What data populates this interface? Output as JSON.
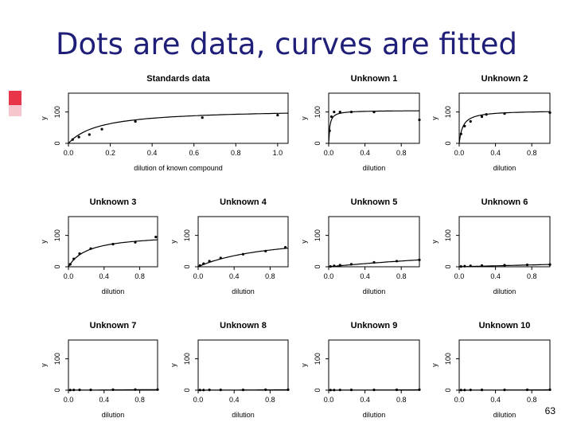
{
  "slide": {
    "title": "Dots are data, curves are fitted",
    "page_number": "63",
    "accent_color": "#e8354a",
    "title_color": "#1f1f7a"
  },
  "chart_data": [
    {
      "type": "scatter",
      "title": "Standards data",
      "xlabel": "dilution of known compound",
      "ylabel": "y",
      "xlim": [
        0,
        1.05
      ],
      "ylim": [
        0,
        160
      ],
      "xticks": [
        "0.0",
        "0.2",
        "0.4",
        "0.6",
        "0.8",
        "1.0"
      ],
      "yticks": [
        "0",
        "100"
      ],
      "points": [
        [
          0.02,
          12
        ],
        [
          0.05,
          20
        ],
        [
          0.1,
          28
        ],
        [
          0.16,
          45
        ],
        [
          0.32,
          70
        ],
        [
          0.64,
          82
        ],
        [
          1.0,
          90
        ]
      ],
      "fit": {
        "vmax": 110,
        "k": 0.15
      }
    },
    {
      "type": "scatter",
      "title": "Unknown 1",
      "xlabel": "dilution",
      "ylabel": "y",
      "xlim": [
        0,
        1
      ],
      "ylim": [
        0,
        160
      ],
      "xticks": [
        "0.0",
        "0.4",
        "0.8"
      ],
      "yticks": [
        "0",
        "100"
      ],
      "points": [
        [
          0.01,
          40
        ],
        [
          0.03,
          85
        ],
        [
          0.06,
          100
        ],
        [
          0.125,
          100
        ],
        [
          0.25,
          100
        ],
        [
          0.5,
          100
        ],
        [
          1.0,
          75
        ]
      ],
      "fit": {
        "vmax": 105,
        "k": 0.012
      }
    },
    {
      "type": "scatter",
      "title": "Unknown 2",
      "xlabel": "dilution",
      "ylabel": "y",
      "xlim": [
        0,
        1
      ],
      "ylim": [
        0,
        160
      ],
      "xticks": [
        "0.0",
        "0.4",
        "0.8"
      ],
      "yticks": [
        "0",
        "100"
      ],
      "points": [
        [
          0.02,
          30
        ],
        [
          0.06,
          55
        ],
        [
          0.125,
          70
        ],
        [
          0.25,
          85
        ],
        [
          0.3,
          92
        ],
        [
          0.5,
          95
        ],
        [
          1.0,
          98
        ]
      ],
      "fit": {
        "vmax": 105,
        "k": 0.04
      }
    },
    {
      "type": "scatter",
      "title": "Unknown 3",
      "xlabel": "dilution",
      "ylabel": "y",
      "xlim": [
        0,
        1
      ],
      "ylim": [
        0,
        160
      ],
      "xticks": [
        "0.0",
        "0.4",
        "0.8"
      ],
      "yticks": [
        "0",
        "100"
      ],
      "points": [
        [
          0.02,
          8
        ],
        [
          0.06,
          25
        ],
        [
          0.125,
          42
        ],
        [
          0.25,
          58
        ],
        [
          0.5,
          72
        ],
        [
          0.75,
          78
        ],
        [
          0.98,
          95
        ]
      ],
      "fit": {
        "vmax": 105,
        "k": 0.22
      }
    },
    {
      "type": "scatter",
      "title": "Unknown 4",
      "xlabel": "dilution",
      "ylabel": "y",
      "xlim": [
        0,
        1
      ],
      "ylim": [
        0,
        160
      ],
      "xticks": [
        "0.0",
        "0.4",
        "0.8"
      ],
      "yticks": [
        "0",
        "100"
      ],
      "points": [
        [
          0.02,
          4
        ],
        [
          0.06,
          10
        ],
        [
          0.125,
          18
        ],
        [
          0.25,
          28
        ],
        [
          0.5,
          40
        ],
        [
          0.75,
          50
        ],
        [
          0.97,
          62
        ]
      ],
      "fit": {
        "vmax": 110,
        "k": 0.85
      }
    },
    {
      "type": "scatter",
      "title": "Unknown 5",
      "xlabel": "dilution",
      "ylabel": "y",
      "xlim": [
        0,
        1
      ],
      "ylim": [
        0,
        160
      ],
      "xticks": [
        "0.0",
        "0.4",
        "0.8"
      ],
      "yticks": [
        "0",
        "100"
      ],
      "points": [
        [
          0.02,
          1
        ],
        [
          0.06,
          3
        ],
        [
          0.125,
          5
        ],
        [
          0.25,
          8
        ],
        [
          0.5,
          14
        ],
        [
          0.75,
          18
        ],
        [
          1.0,
          22
        ]
      ],
      "fit": {
        "vmax": 110,
        "k": 4.0
      }
    },
    {
      "type": "scatter",
      "title": "Unknown 6",
      "xlabel": "dilution",
      "ylabel": "y",
      "xlim": [
        0,
        1
      ],
      "ylim": [
        0,
        160
      ],
      "xticks": [
        "0.0",
        "0.4",
        "0.8"
      ],
      "yticks": [
        "0",
        "100"
      ],
      "points": [
        [
          0.02,
          1
        ],
        [
          0.06,
          2
        ],
        [
          0.125,
          3
        ],
        [
          0.25,
          4
        ],
        [
          0.5,
          5
        ],
        [
          0.75,
          6
        ],
        [
          1.0,
          7
        ]
      ],
      "fit": {
        "vmax": 110,
        "k": 14.0
      }
    },
    {
      "type": "scatter",
      "title": "Unknown 7",
      "xlabel": "dilution",
      "ylabel": "y",
      "xlim": [
        0,
        1
      ],
      "ylim": [
        0,
        160
      ],
      "xticks": [
        "0.0",
        "0.4",
        "0.8"
      ],
      "yticks": [
        "0",
        "100"
      ],
      "points": [
        [
          0.02,
          0.5
        ],
        [
          0.06,
          0.8
        ],
        [
          0.125,
          1
        ],
        [
          0.25,
          1
        ],
        [
          0.5,
          1.5
        ],
        [
          0.75,
          2
        ],
        [
          1.0,
          2
        ]
      ],
      "fit": {
        "vmax": 110,
        "k": 60.0
      }
    },
    {
      "type": "scatter",
      "title": "Unknown 8",
      "xlabel": "dilution",
      "ylabel": "y",
      "xlim": [
        0,
        1
      ],
      "ylim": [
        0,
        160
      ],
      "xticks": [
        "0.0",
        "0.4",
        "0.8"
      ],
      "yticks": [
        "0",
        "100"
      ],
      "points": [
        [
          0.02,
          0.5
        ],
        [
          0.06,
          0.5
        ],
        [
          0.125,
          1
        ],
        [
          0.25,
          1
        ],
        [
          0.5,
          1
        ],
        [
          0.75,
          1.5
        ],
        [
          1.0,
          1.5
        ]
      ],
      "fit": {
        "vmax": 110,
        "k": 80.0
      }
    },
    {
      "type": "scatter",
      "title": "Unknown 9",
      "xlabel": "dilution",
      "ylabel": "y",
      "xlim": [
        0,
        1
      ],
      "ylim": [
        0,
        160
      ],
      "xticks": [
        "0.0",
        "0.4",
        "0.8"
      ],
      "yticks": [
        "0",
        "100"
      ],
      "points": [
        [
          0.02,
          0.5
        ],
        [
          0.06,
          0.5
        ],
        [
          0.125,
          0.8
        ],
        [
          0.25,
          1
        ],
        [
          0.5,
          1
        ],
        [
          0.75,
          1.2
        ],
        [
          1.0,
          1.5
        ]
      ],
      "fit": {
        "vmax": 110,
        "k": 90.0
      }
    },
    {
      "type": "scatter",
      "title": "Unknown 10",
      "xlabel": "dilution",
      "ylabel": "y",
      "xlim": [
        0,
        1
      ],
      "ylim": [
        0,
        160
      ],
      "xticks": [
        "0.0",
        "0.4",
        "0.8"
      ],
      "yticks": [
        "0",
        "100"
      ],
      "points": [
        [
          0.02,
          0.5
        ],
        [
          0.06,
          0.5
        ],
        [
          0.125,
          0.8
        ],
        [
          0.25,
          1
        ],
        [
          0.5,
          1
        ],
        [
          0.75,
          1.2
        ],
        [
          1.0,
          1.5
        ]
      ],
      "fit": {
        "vmax": 110,
        "k": 90.0
      }
    }
  ]
}
